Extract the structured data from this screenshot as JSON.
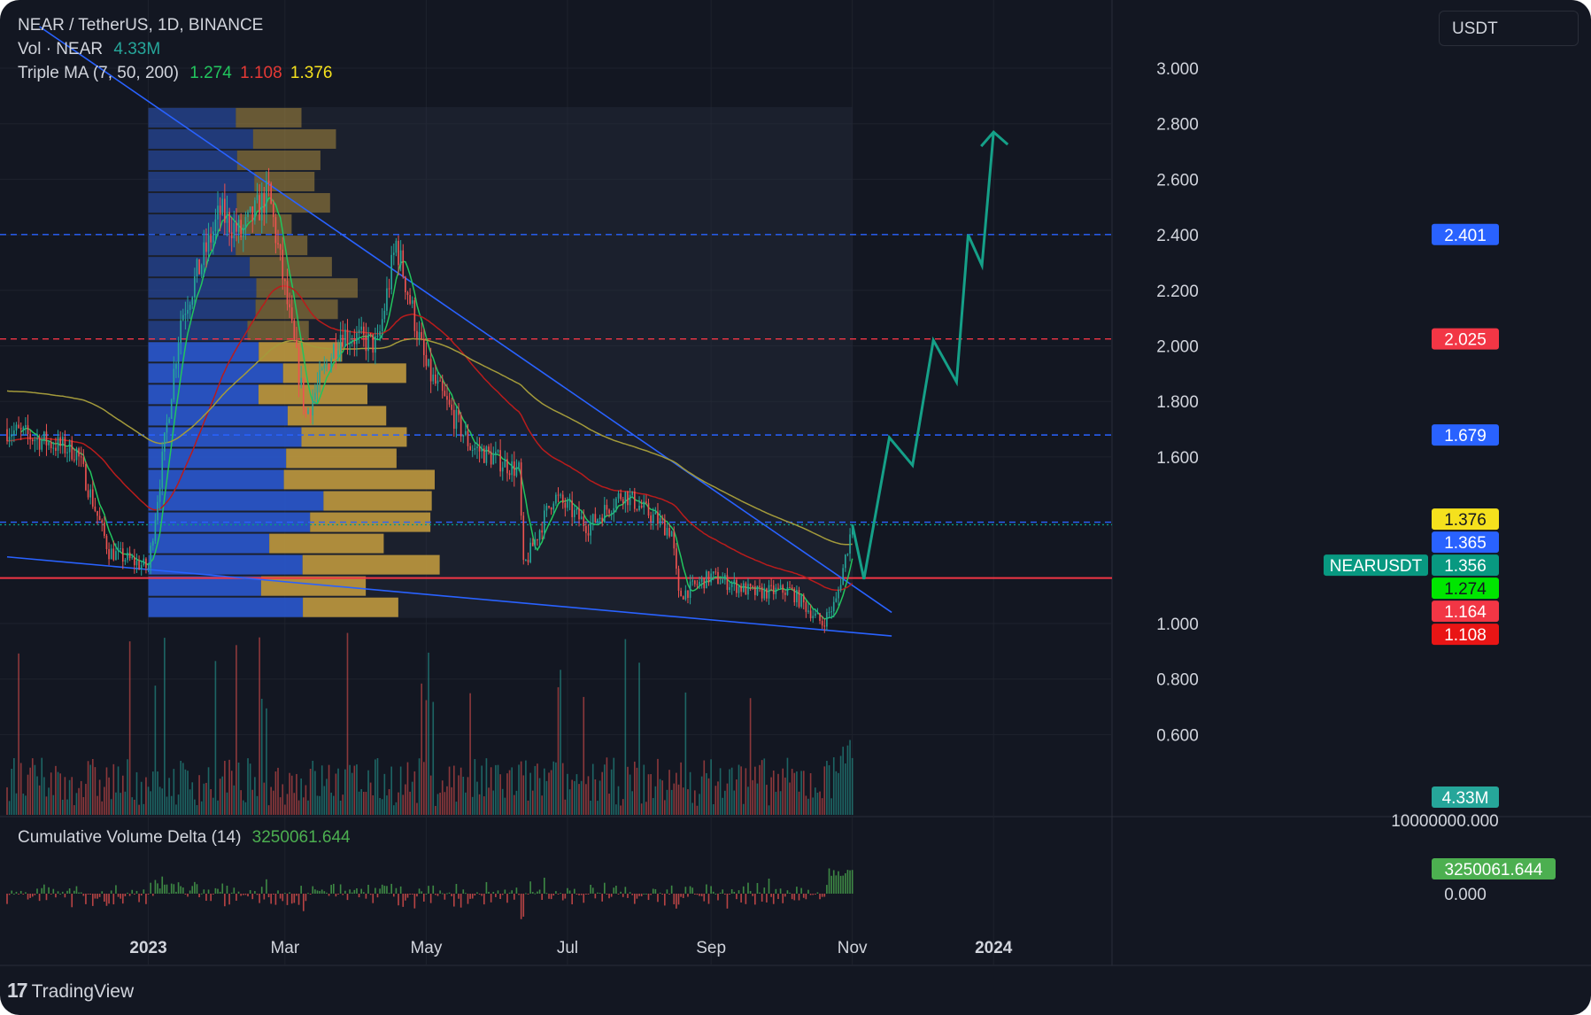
{
  "header": {
    "symbol_line": "NEAR / TetherUS, 1D, BINANCE",
    "vol_label": "Vol · NEAR",
    "vol_value": "4.33M",
    "ma_label": "Triple MA (7, 50, 200)",
    "ma7_value": "1.274",
    "ma50_value": "1.108",
    "ma200_value": "1.376",
    "cvd_label": "Cumulative Volume Delta (14)",
    "cvd_value": "3250061.644"
  },
  "toolbar": {
    "unit_label": "USDT"
  },
  "footer": {
    "brand": "TradingView",
    "brand_logo": "tradingview-logo-icon"
  },
  "colors": {
    "background": "#131722",
    "up": "#26a69a",
    "down": "#ef5350",
    "ma7": "#22c55e",
    "ma50": "#b91c1c",
    "ma200": "#a39a3b",
    "trendline": "#2962ff",
    "support": "#f23645",
    "projection": "#15a088",
    "vp_up": "#2a5bd7",
    "vp_down": "#c8a040"
  },
  "chart_data": [
    {
      "type": "candlestick",
      "title": "NEAR / TetherUS, 1D, BINANCE",
      "y_axis": {
        "ticks": [
          "3.000",
          "2.800",
          "2.600",
          "2.400",
          "2.200",
          "2.000",
          "1.800",
          "1.600",
          "1.000",
          "0.800",
          "0.600"
        ],
        "tick_values": [
          3.0,
          2.8,
          2.6,
          2.4,
          2.2,
          2.0,
          1.8,
          1.6,
          1.0,
          0.8,
          0.6
        ]
      },
      "x_axis": {
        "ticks": [
          "2023",
          "Mar",
          "May",
          "Jul",
          "Sep",
          "Nov",
          "2024"
        ],
        "range": [
          "2022-11-01",
          "2024-02-20"
        ]
      },
      "price_labels": [
        {
          "text": "2.401",
          "value": 2.401,
          "color": "#2962ff"
        },
        {
          "text": "2.025",
          "value": 2.025,
          "color": "#f23645"
        },
        {
          "text": "1.679",
          "value": 1.679,
          "color": "#2962ff"
        },
        {
          "text": "1.376",
          "value": 1.376,
          "color": "#f5e11d"
        },
        {
          "text": "1.365",
          "value": 1.365,
          "color": "#2962ff"
        },
        {
          "text": "1.356",
          "value": 1.356,
          "color": "#089981"
        },
        {
          "text": "1.274",
          "value": 1.274,
          "color": "#00e600"
        },
        {
          "text": "1.164",
          "value": 1.164,
          "color": "#f23645"
        },
        {
          "text": "1.108",
          "value": 1.108,
          "color": "#e91515"
        }
      ],
      "symbol_tag": "NEARUSDT",
      "volume_label": "4.33M",
      "horizontal_levels": [
        {
          "value": 2.401,
          "style": "dashed",
          "color": "#2962ff"
        },
        {
          "value": 2.025,
          "style": "dashed",
          "color": "#f23645"
        },
        {
          "value": 1.679,
          "style": "dashed",
          "color": "#2962ff"
        },
        {
          "value": 1.365,
          "style": "dashed",
          "color": "#2962ff"
        },
        {
          "value": 1.356,
          "style": "dotted",
          "color": "#089981"
        },
        {
          "value": 1.164,
          "style": "solid",
          "color": "#f23645"
        }
      ],
      "trendlines": [
        {
          "from": [
            "2022-11-15",
            3.15
          ],
          "to": [
            "2023-11-18",
            1.04
          ]
        },
        {
          "from": [
            "2022-11-01",
            1.24
          ],
          "to": [
            "2023-11-18",
            0.955
          ]
        }
      ],
      "key_prices": [
        {
          "date": "2022-11-01",
          "close": 1.7
        },
        {
          "date": "2022-12-01",
          "close": 1.62
        },
        {
          "date": "2022-12-15",
          "close": 1.26
        },
        {
          "date": "2023-01-01",
          "close": 1.2
        },
        {
          "date": "2023-01-15",
          "close": 2.1
        },
        {
          "date": "2023-02-01",
          "close": 2.48
        },
        {
          "date": "2023-02-10",
          "close": 2.4
        },
        {
          "date": "2023-02-22",
          "close": 2.55
        },
        {
          "date": "2023-03-10",
          "close": 1.75
        },
        {
          "date": "2023-03-25",
          "close": 2.05
        },
        {
          "date": "2023-04-10",
          "close": 2.0
        },
        {
          "date": "2023-04-18",
          "close": 2.37
        },
        {
          "date": "2023-05-01",
          "close": 1.92
        },
        {
          "date": "2023-05-20",
          "close": 1.64
        },
        {
          "date": "2023-06-10",
          "close": 1.55
        },
        {
          "date": "2023-06-12",
          "close": 1.2
        },
        {
          "date": "2023-06-25",
          "close": 1.46
        },
        {
          "date": "2023-07-10",
          "close": 1.35
        },
        {
          "date": "2023-07-25",
          "close": 1.47
        },
        {
          "date": "2023-08-15",
          "close": 1.33
        },
        {
          "date": "2023-08-18",
          "close": 1.1
        },
        {
          "date": "2023-09-01",
          "close": 1.17
        },
        {
          "date": "2023-09-20",
          "close": 1.11
        },
        {
          "date": "2023-10-05",
          "close": 1.12
        },
        {
          "date": "2023-10-19",
          "close": 1.0
        },
        {
          "date": "2023-10-25",
          "close": 1.08
        },
        {
          "date": "2023-11-01",
          "close": 1.356
        }
      ],
      "projection_path": [
        {
          "date": "2023-11-01",
          "value": 1.356
        },
        {
          "date": "2023-11-06",
          "value": 1.16
        },
        {
          "date": "2023-11-17",
          "value": 1.67
        },
        {
          "date": "2023-11-27",
          "value": 1.57
        },
        {
          "date": "2023-12-06",
          "value": 2.02
        },
        {
          "date": "2023-12-16",
          "value": 1.87
        },
        {
          "date": "2023-12-21",
          "value": 2.4
        },
        {
          "date": "2023-12-27",
          "value": 2.29
        },
        {
          "date": "2024-01-01",
          "value": 2.77
        }
      ],
      "moving_averages": {
        "ma7": 1.274,
        "ma50": 1.108,
        "ma200": 1.376
      },
      "volume_profile_rows": 24
    },
    {
      "type": "bar",
      "title": "Cumulative Volume Delta (14)",
      "y_axis": {
        "ticks": [
          "10000000.000",
          "0.000"
        ],
        "tick_values": [
          10000000,
          0
        ]
      },
      "last_value_label": "3250061.644",
      "last_value": 3250061.644
    }
  ]
}
